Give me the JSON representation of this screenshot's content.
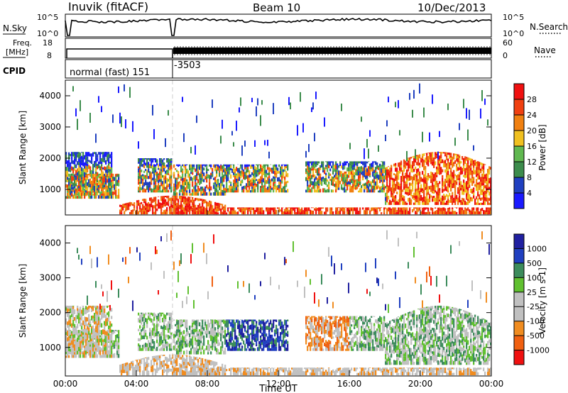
{
  "header": {
    "station": "Inuvik (fitACF)",
    "beam": "Beam 10",
    "date": "10/Dec/2013"
  },
  "side_labels": {
    "nsky": "N.Sky",
    "freq_line1": "Freq.",
    "freq_line2": "[MHz]",
    "cpid": "CPID",
    "nsearch": "N.Search",
    "nave": "Nave"
  },
  "tick_labels": {
    "nsky_top": "10^5",
    "nsky_bottom": "10^0",
    "nsearch_top": "10^5",
    "nsearch_bottom": "10^0",
    "freq_top": "18",
    "freq_bottom": "8",
    "nave_top": "60",
    "nave_bottom": "0"
  },
  "cpid_labels": {
    "mode1": "normal (fast) 151",
    "mode2": "-3503"
  },
  "colors": {
    "power": [
      "#1a1aff",
      "#2040c0",
      "#3c8c4c",
      "#60b850",
      "#f0c020",
      "#f08010",
      "#f04010",
      "#f01010"
    ],
    "velocity": [
      "#f01010",
      "#f06010",
      "#f08c20",
      "#c0c0c0",
      "#c0c0c0",
      "#60c030",
      "#3c8c5c",
      "#2040c0",
      "#2020a0"
    ]
  },
  "chart_data": [
    {
      "type": "heatmap",
      "title": "Power",
      "ylabel": "Slant Range [km]",
      "ylim": [
        180,
        4500
      ],
      "yticks": [
        1000,
        2000,
        3000,
        4000
      ],
      "colorbar": {
        "label": "Power [dB]",
        "ticks": [
          "4",
          "8",
          "12",
          "16",
          "20",
          "24",
          "28"
        ],
        "range": [
          0,
          32
        ]
      },
      "xlim_hours": [
        0,
        24
      ]
    },
    {
      "type": "heatmap",
      "title": "Velocity",
      "ylabel": "Slant Range [km]",
      "xlabel": "Time UT",
      "xticks": [
        "00:00",
        "04:00",
        "08:00",
        "12:00",
        "16:00",
        "20:00",
        "00:00"
      ],
      "ylim": [
        180,
        4500
      ],
      "yticks": [
        1000,
        2000,
        3000,
        4000
      ],
      "colorbar": {
        "label": "Velocity [m s-1]",
        "ticks": [
          "1000",
          "500",
          "100",
          "25",
          "-25",
          "-100",
          "-500",
          "-1000"
        ]
      },
      "xlim_hours": [
        0,
        24
      ]
    }
  ]
}
